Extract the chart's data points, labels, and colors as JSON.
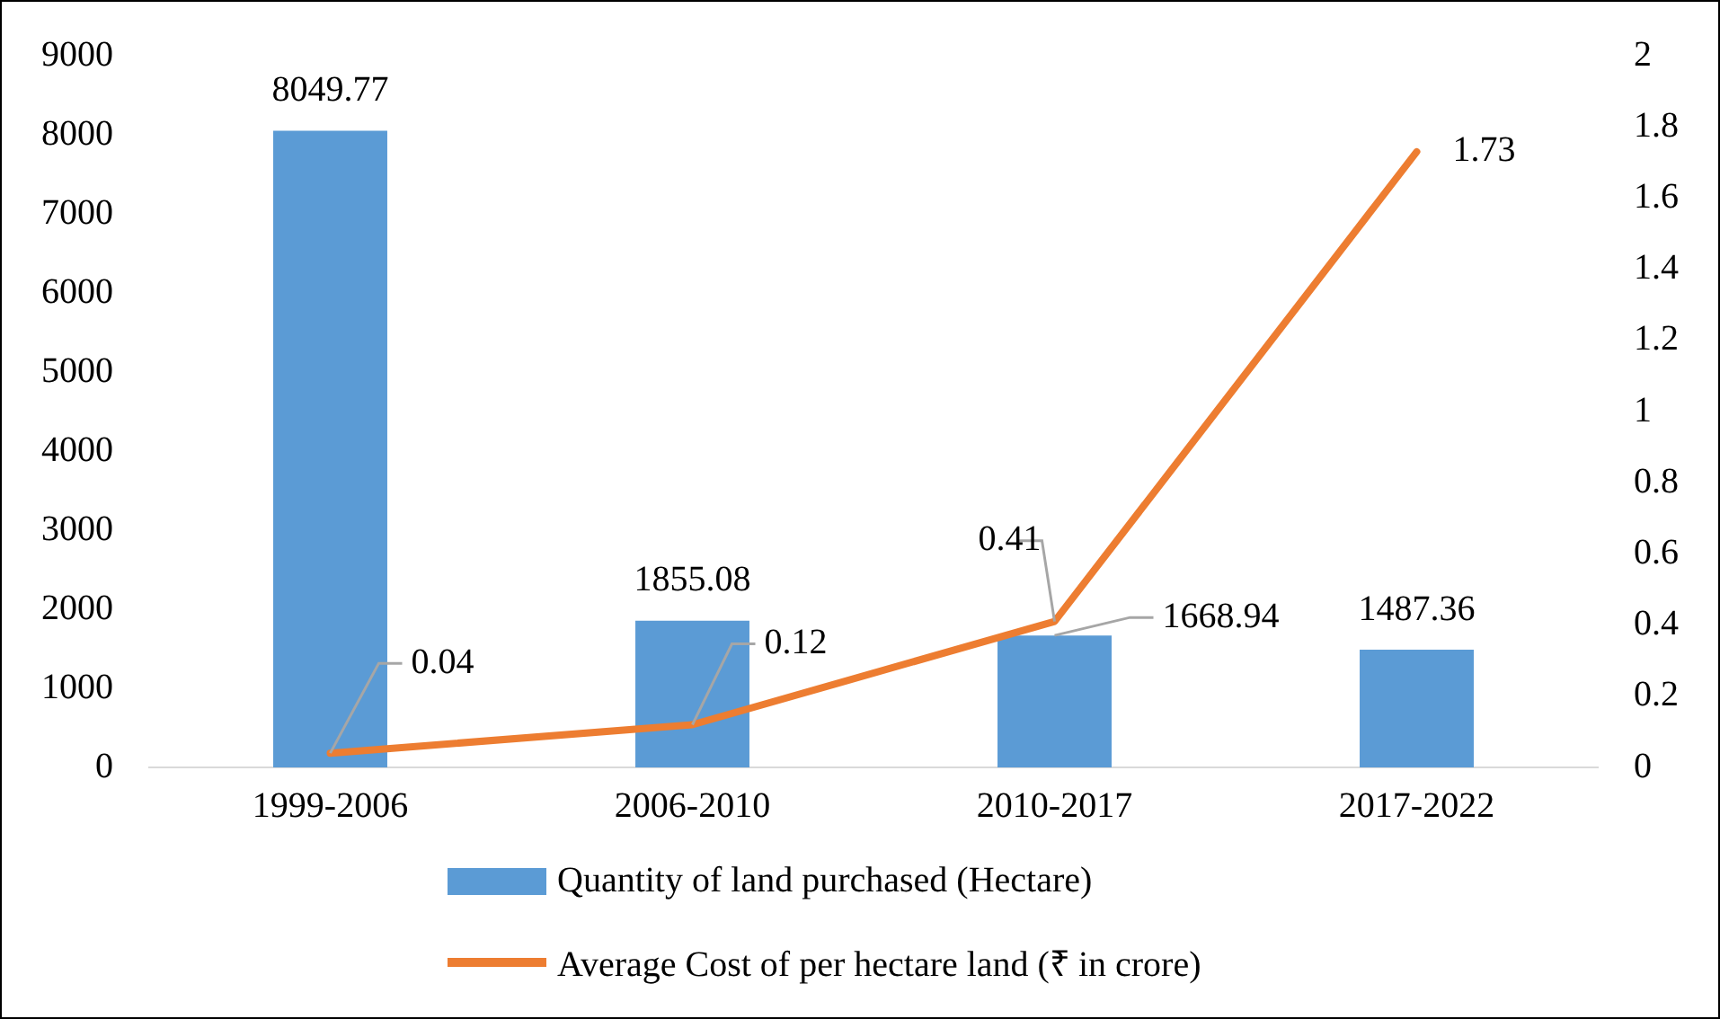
{
  "chart_data": {
    "type": "bar",
    "categories": [
      "1999-2006",
      "2006-2010",
      "2010-2017",
      "2017-2022"
    ],
    "series": [
      {
        "name": "Quantity of land purchased (Hectare)",
        "color": "#5b9bd5",
        "values": [
          8049.77,
          1855.08,
          1668.94,
          1487.36
        ]
      },
      {
        "name": "Average Cost of per hectare land (₹ in crore)",
        "color": "#ed7d31",
        "type": "line",
        "axis": "y2",
        "values": [
          0.04,
          0.12,
          0.41,
          1.73
        ]
      }
    ],
    "ylim": [
      0,
      9000
    ],
    "yticks": [
      0,
      1000,
      2000,
      3000,
      4000,
      5000,
      6000,
      7000,
      8000,
      9000
    ],
    "y2lim": [
      0,
      2
    ],
    "y2ticks": [
      0,
      0.2,
      0.4,
      0.6,
      0.8,
      1,
      1.2,
      1.4,
      1.6,
      1.8,
      2
    ],
    "grid": false,
    "legend": "bottom",
    "marker": "none",
    "line_style": "solid",
    "data_labels": true
  }
}
